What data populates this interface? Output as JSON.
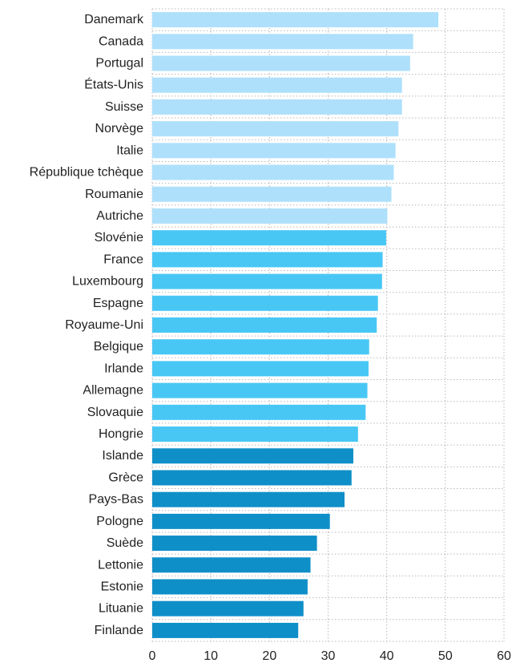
{
  "chart_data": {
    "type": "bar",
    "orientation": "horizontal",
    "title": "",
    "xlabel": "",
    "ylabel": "",
    "xlim": [
      0,
      60
    ],
    "xticks": [
      "0",
      "10",
      "20",
      "30",
      "40",
      "50",
      "60"
    ],
    "grid": true,
    "categories": [
      "Danemark",
      "Canada",
      "Portugal",
      "États-Unis",
      "Suisse",
      "Norvège",
      "Italie",
      "République tchèque",
      "Roumanie",
      "Autriche",
      "Slovénie",
      "France",
      "Luxembourg",
      "Espagne",
      "Royaume-Uni",
      "Belgique",
      "Irlande",
      "Allemagne",
      "Slovaquie",
      "Hongrie",
      "Islande",
      "Grèce",
      "Pays-Bas",
      "Pologne",
      "Suède",
      "Lettonie",
      "Estonie",
      "Lituanie",
      "Finlande"
    ],
    "values": [
      48.8,
      44.5,
      44.0,
      42.6,
      42.6,
      42.0,
      41.5,
      41.2,
      40.8,
      40.1,
      39.9,
      39.3,
      39.2,
      38.5,
      38.3,
      37.0,
      36.9,
      36.7,
      36.4,
      35.1,
      34.3,
      34.0,
      32.8,
      30.3,
      28.1,
      27.0,
      26.5,
      25.8,
      24.9
    ],
    "groups": [
      0,
      0,
      0,
      0,
      0,
      0,
      0,
      0,
      0,
      0,
      1,
      1,
      1,
      1,
      1,
      1,
      1,
      1,
      1,
      1,
      2,
      2,
      2,
      2,
      2,
      2,
      2,
      2,
      2
    ],
    "colors": [
      "#aee0fb",
      "#48c7f5",
      "#0f8fc8"
    ]
  }
}
